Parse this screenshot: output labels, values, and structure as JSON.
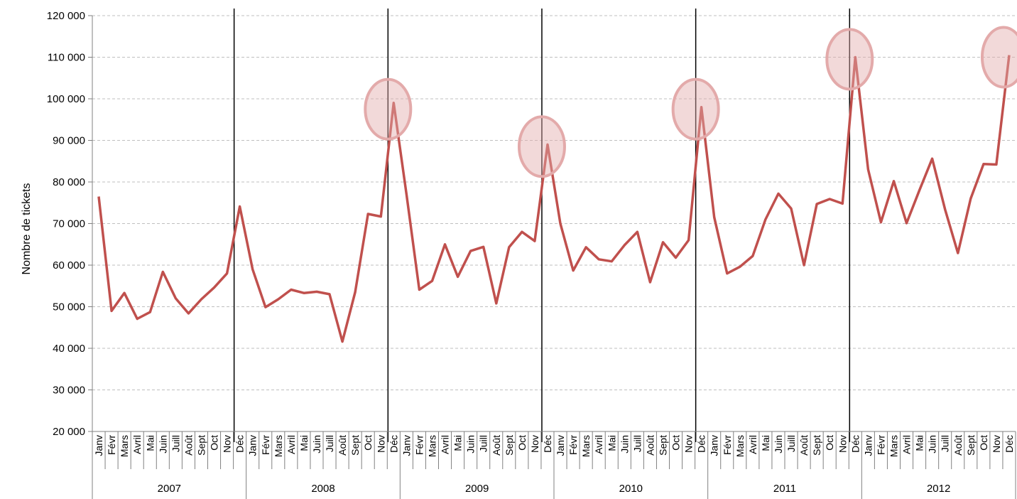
{
  "chart_data": {
    "type": "line",
    "ylabel": "Nombre de tickets",
    "xlabel": "",
    "ylim": [
      20000,
      120000
    ],
    "y_ticks": [
      20000,
      30000,
      40000,
      50000,
      60000,
      70000,
      80000,
      90000,
      100000,
      110000,
      120000
    ],
    "y_tick_labels": [
      "20 000",
      "30 000",
      "40 000",
      "50 000",
      "60 000",
      "70 000",
      "80 000",
      "90 000",
      "100 000",
      "110 000",
      "120 000"
    ],
    "grid": "horizontal dashed",
    "years": [
      "2007",
      "2008",
      "2009",
      "2010",
      "2011",
      "2012"
    ],
    "months": [
      "Janv",
      "Févr",
      "Mars",
      "Avril",
      "Mai",
      "Juin",
      "Juill",
      "Août",
      "Sept",
      "Oct",
      "Nov",
      "Déc"
    ],
    "series": [
      {
        "color": "#c0504d",
        "values": [
          76500,
          49000,
          53300,
          47100,
          48700,
          58400,
          52000,
          48400,
          51800,
          54600,
          58000,
          74100,
          59000,
          49900,
          51800,
          54100,
          53300,
          53600,
          53000,
          41600,
          53500,
          72300,
          71700,
          99000,
          77000,
          54100,
          56200,
          65000,
          57200,
          63400,
          64400,
          50800,
          64300,
          68000,
          65800,
          89000,
          70000,
          58700,
          64300,
          61400,
          60900,
          64800,
          68000,
          55900,
          65500,
          61800,
          66000,
          98000,
          71500,
          58000,
          59600,
          62200,
          71000,
          77200,
          73600,
          60000,
          74700,
          75900,
          74800,
          110000,
          83000,
          70300,
          80200,
          70100,
          78000,
          85600,
          73400,
          62900,
          76000,
          84300,
          84200,
          110500
        ]
      }
    ],
    "vertical_marker_lines": [
      "Déc 2007",
      "Déc 2008",
      "Déc 2009",
      "Déc 2010",
      "Déc 2011"
    ],
    "highlight_circles": [
      {
        "month": "Déc",
        "year": "2008",
        "value": 97500
      },
      {
        "month": "Déc",
        "year": "2009",
        "value": 88500
      },
      {
        "month": "Déc",
        "year": "2010",
        "value": 97500
      },
      {
        "month": "Déc",
        "year": "2011",
        "value": 109500
      },
      {
        "month": "Déc",
        "year": "2012",
        "value": 110000
      }
    ],
    "highlight_color": "#e3aaaa"
  }
}
